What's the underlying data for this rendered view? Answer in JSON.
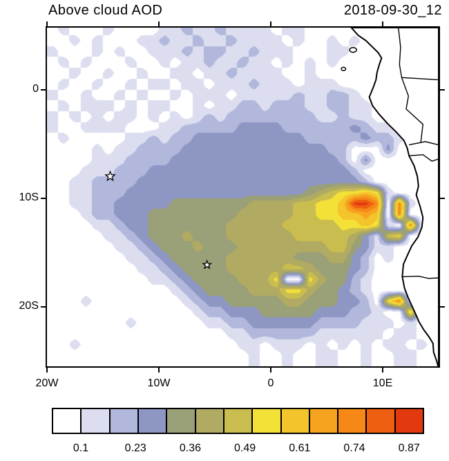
{
  "header": {
    "title": "Above cloud AOD",
    "timestamp": "2018-09-30_12"
  },
  "axes": {
    "x_ticks": [
      {
        "lon": -20,
        "label": "20W"
      },
      {
        "lon": -10,
        "label": "10W"
      },
      {
        "lon": 0,
        "label": "0"
      },
      {
        "lon": 10,
        "label": "10E"
      }
    ],
    "y_ticks": [
      {
        "lat": 0,
        "label": "0"
      },
      {
        "lat": -10,
        "label": "10S"
      },
      {
        "lat": -20,
        "label": "20S"
      }
    ]
  },
  "chart_data": {
    "type": "heatmap",
    "title": "Above cloud AOD",
    "timestamp": "2018-09-30_12",
    "lon_range": [
      -20,
      15
    ],
    "lat_range": [
      -25.5,
      5.7
    ],
    "colorbar": {
      "labels": [
        "0.1",
        "0.23",
        "0.36",
        "0.49",
        "0.61",
        "0.74",
        "0.87"
      ],
      "colors": [
        "#ffffff",
        "#dcdef0",
        "#b2b8dc",
        "#8e96c4",
        "#9aa077",
        "#b0aa62",
        "#cabd4f",
        "#f3e138",
        "#f4c42c",
        "#f6a41f",
        "#f68818",
        "#ee5f12",
        "#e3390e"
      ]
    },
    "grid": {
      "cols": 35,
      "rows": 31,
      "lon0": -20,
      "lat0": 6,
      "dlon": 1,
      "dlat": 1,
      "levels": [
        [
          ".1...",
          "1....",
          "11211",
          "21111",
          ".11..",
          ".....",
          "....."
        ],
        [
          "..1.1",
          "...11",
          "21121",
          "12111",
          "1.1..",
          "1.1..",
          "....."
        ],
        [
          "1...1",
          ".1..1",
          "11212",
          "21121",
          "11...",
          "11...",
          "....."
        ],
        [
          ".1.1.",
          "..1..",
          "1.112",
          "11211",
          ".1.1.",
          "1....",
          "....."
        ],
        [
          "..1..",
          "1..1.",
          ".11.1",
          "12111",
          "1..1.",
          ".....",
          "....."
        ],
        [
          ".1..1",
          "..1.1",
          "1.11.",
          "11121",
          "11.11",
          "1....",
          "....."
        ],
        [
          "1..1.",
          ".1.1.",
          ".1.11",
          "1.111",
          "11211",
          "221..",
          "....."
        ],
        [
          ".1.11",
          "1.1.1",
          "1..1.",
          "11221",
          "22211",
          "2211.",
          "....."
        ],
        [
          "1.1.1",
          ".11.1",
          ".1.12",
          "12222",
          "22221",
          "1211.",
          "....."
        ],
        [
          "1..11",
          "11...",
          "11222",
          "22333",
          "32222",
          "22321",
          "1...."
        ],
        [
          ".1...",
          "..112",
          "12233",
          "33333",
          "33322",
          "22232",
          "21..."
        ],
        [
          "....1",
          ".1122",
          "22333",
          "33333",
          "33333",
          "22...",
          "3...."
        ],
        [
          "....1",
          "11222",
          "23333",
          "33333",
          "33333",
          "32.3.",
          "....."
        ],
        [
          "...11",
          "12223",
          "33333",
          "33333",
          "33333",
          "332..",
          "....."
        ],
        [
          "..112",
          "22233",
          "33333",
          "33333",
          "33333",
          "3332.",
          "....."
        ],
        [
          "..112",
          "22333",
          "33333",
          "33333",
          "33345",
          "67787",
          "1...."
        ],
        [
          "..112",
          "23333",
          "34444",
          "44455",
          "55667",
          "78cca",
          ".a1.."
        ],
        [
          "...12",
          "23334",
          "44444",
          "44555",
          "55667",
          "78898",
          ".a..."
        ],
        [
          "....1",
          "12334",
          "44444",
          "45555",
          "56666",
          "67787",
          "1.a.."
        ],
        [
          ".....",
          "11234",
          "44544",
          "45555",
          "55666",
          "66531",
          "67..."
        ],
        [
          ".....",
          ".1123",
          "44454",
          "44555",
          "55555",
          "66431",
          "1...."
        ],
        [
          ".....",
          "..112",
          "34444",
          "45555",
          "55444",
          "5532.",
          "1...."
        ],
        [
          ".....",
          "...11",
          "23444",
          "45555",
          "56654",
          "4432.",
          "....."
        ],
        [
          ".....",
          "....1",
          "12344",
          "44555",
          "7..75",
          "4421.",
          "....."
        ],
        [
          ".....",
          ".....",
          ".1234",
          "44455",
          "57754",
          "4321.",
          "....."
        ],
        [
          "...1.",
          ".....",
          "..123",
          "34444",
          "45544",
          "4332.",
          "7a..."
        ],
        [
          ".....",
          ".....",
          "...12",
          "23334",
          "44443",
          "33221",
          "..8.."
        ],
        [
          ".....",
          "..1..",
          "....1",
          "12233",
          "33332",
          "22211",
          "1.1.."
        ],
        [
          ".....",
          ".....",
          ".....",
          ".1122",
          "22221",
          "11111",
          ".11.."
        ],
        [
          "..1..",
          ".....",
          ".....",
          "..11.",
          "111.1",
          ".1.1.",
          "11.1."
        ],
        [
          ".....",
          ".....",
          ".....",
          "...1.",
          ".1..1",
          "1..1.",
          ".11.."
        ]
      ]
    },
    "markers": [
      {
        "symbol": "star",
        "lon": -14.35,
        "lat": -8.0,
        "size": 7
      },
      {
        "symbol": "star",
        "lon": -5.7,
        "lat": -16.15,
        "size": 6
      }
    ],
    "coastline": [
      [
        7.2,
        5.7
      ],
      [
        7.8,
        5.0
      ],
      [
        8.5,
        4.5
      ],
      [
        9.0,
        4.0
      ],
      [
        9.6,
        3.4
      ],
      [
        9.9,
        2.9
      ],
      [
        9.7,
        2.3
      ],
      [
        9.5,
        1.6
      ],
      [
        9.4,
        0.9
      ],
      [
        9.2,
        0.3
      ],
      [
        8.8,
        -0.7
      ],
      [
        9.1,
        -1.5
      ],
      [
        9.7,
        -2.3
      ],
      [
        10.4,
        -3.1
      ],
      [
        11.2,
        -3.9
      ],
      [
        11.9,
        -4.7
      ],
      [
        12.2,
        -5.4
      ],
      [
        12.35,
        -6.1
      ],
      [
        12.8,
        -7.0
      ],
      [
        13.1,
        -8.0
      ],
      [
        13.2,
        -8.9
      ],
      [
        13.0,
        -9.7
      ],
      [
        13.35,
        -10.8
      ],
      [
        13.6,
        -11.8
      ],
      [
        13.5,
        -12.7
      ],
      [
        13.15,
        -13.6
      ],
      [
        12.6,
        -14.4
      ],
      [
        12.2,
        -15.3
      ],
      [
        11.85,
        -16.1
      ],
      [
        11.75,
        -17.25
      ],
      [
        11.95,
        -18.3
      ],
      [
        12.25,
        -19.1
      ],
      [
        12.6,
        -19.9
      ],
      [
        12.95,
        -20.7
      ],
      [
        13.25,
        -21.4
      ],
      [
        13.65,
        -22.1
      ],
      [
        14.15,
        -22.8
      ],
      [
        14.5,
        -23.4
      ],
      [
        14.55,
        -24.2
      ],
      [
        14.85,
        -25.1
      ],
      [
        14.95,
        -25.5
      ]
    ],
    "borders": [
      [
        [
          11.4,
          5.7
        ],
        [
          11.6,
          3.9
        ],
        [
          11.5,
          2.3
        ],
        [
          11.7,
          1.1
        ],
        [
          15,
          0.9
        ]
      ],
      [
        [
          11.7,
          1.1
        ],
        [
          12.3,
          -0.6
        ],
        [
          12.1,
          -1.8
        ],
        [
          13.6,
          -3.2
        ],
        [
          13.4,
          -4.9
        ]
      ],
      [
        [
          12.35,
          -5.1
        ],
        [
          13.8,
          -4.8
        ],
        [
          15,
          -5.1
        ]
      ],
      [
        [
          12.4,
          -6.1
        ],
        [
          13.6,
          -6.0
        ],
        [
          14.4,
          -6.6
        ],
        [
          15,
          -6.4
        ]
      ],
      [
        [
          11.75,
          -17.25
        ],
        [
          13.2,
          -17.2
        ],
        [
          14.1,
          -17.4
        ],
        [
          15,
          -17.35
        ]
      ]
    ],
    "islands": [
      {
        "lon": 7.35,
        "lat": 3.65,
        "rx": 5,
        "ry": 3.5
      },
      {
        "lon": 6.5,
        "lat": 1.9,
        "rx": 3.2,
        "ry": 2.5
      }
    ]
  }
}
